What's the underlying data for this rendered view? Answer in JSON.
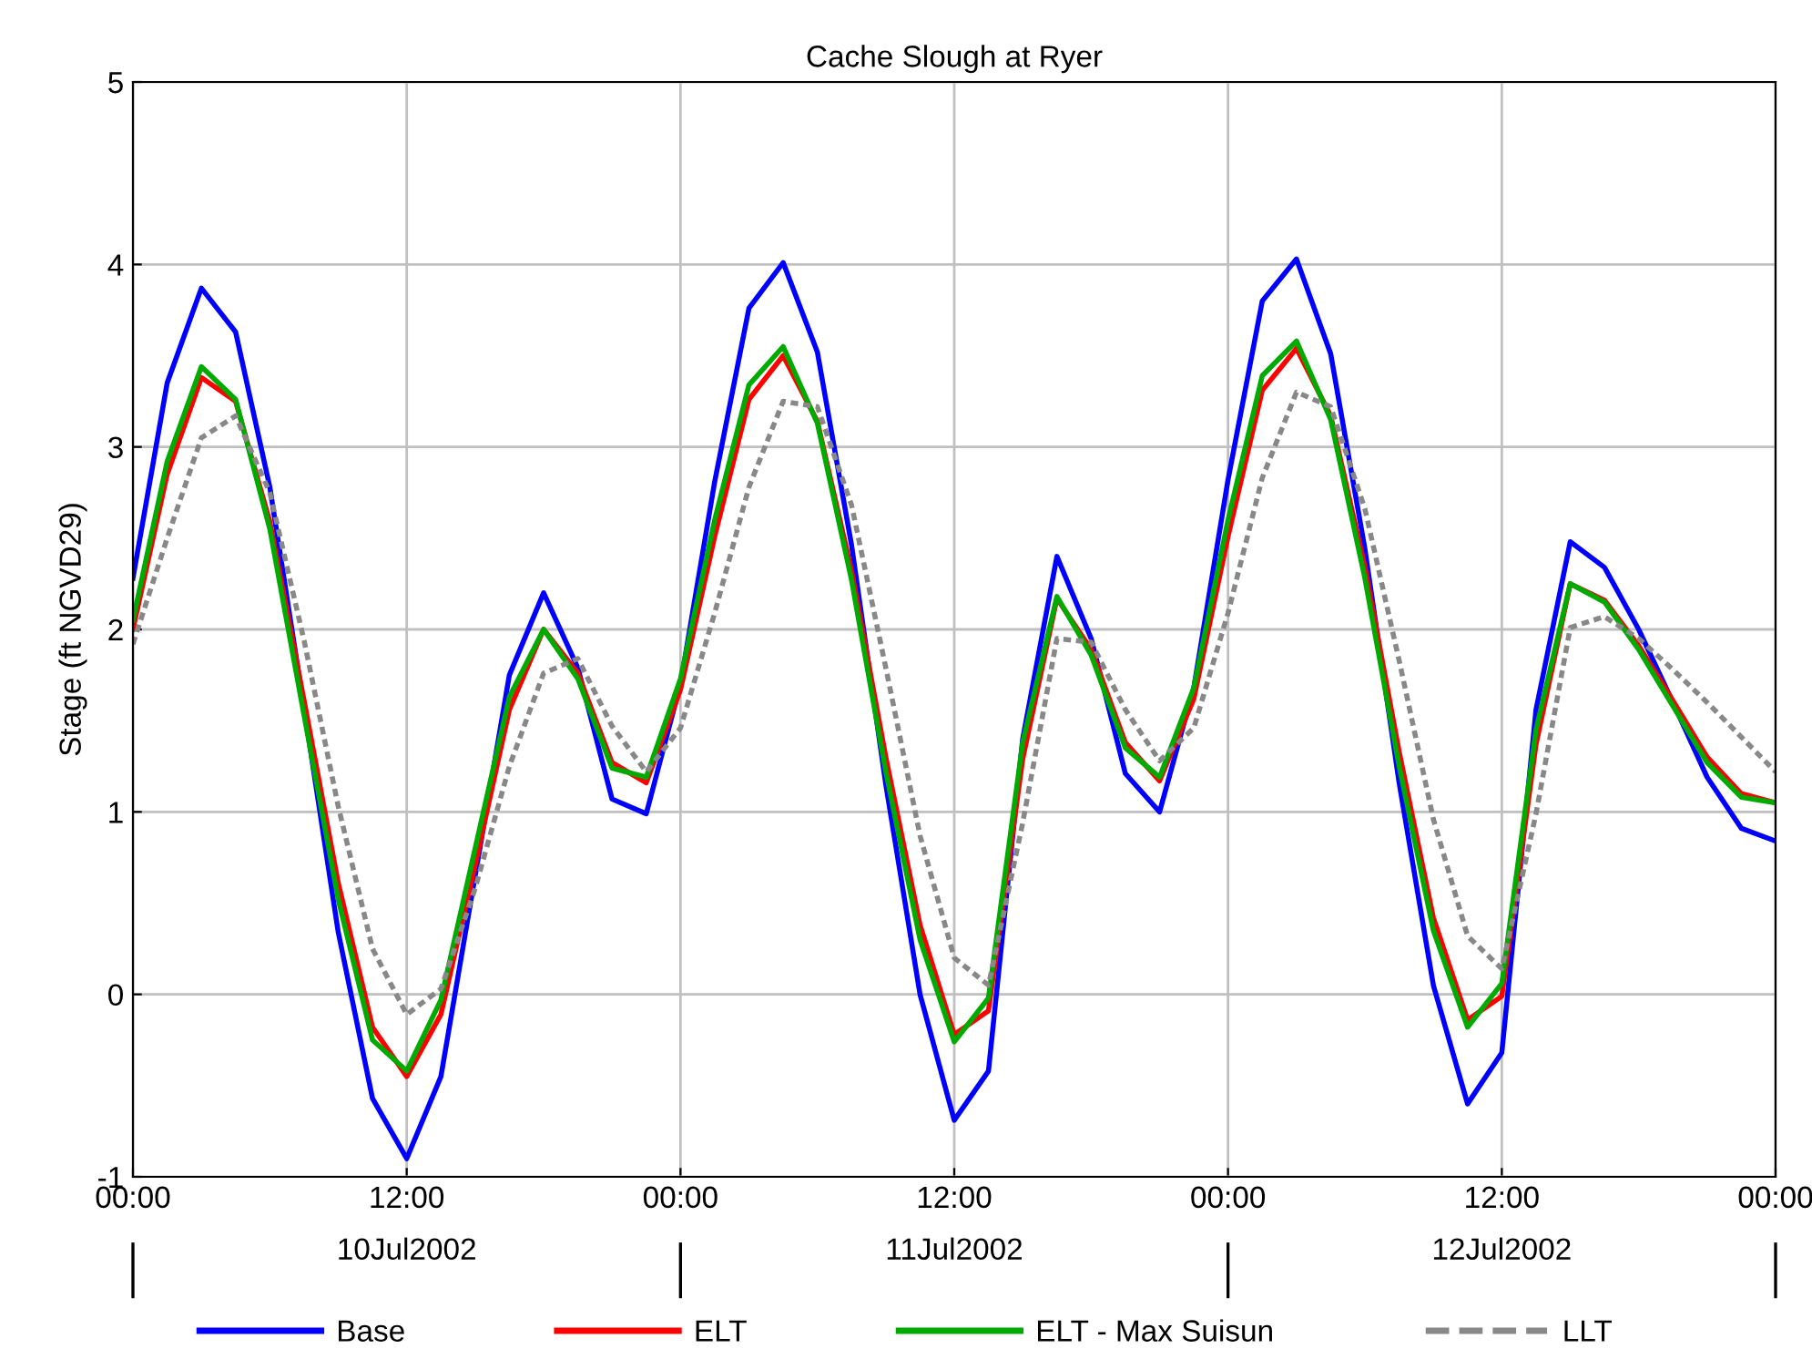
{
  "chart_data": {
    "type": "line",
    "title": "Cache Slough at Ryer",
    "ylabel": "Stage (ft NGVD29)",
    "xlim": [
      "2002-07-10T00:00",
      "2002-07-13T00:00"
    ],
    "xticks": [
      {
        "value": "2002-07-10T00:00",
        "label": "00:00"
      },
      {
        "value": "2002-07-10T12:00",
        "label": "12:00"
      },
      {
        "value": "2002-07-11T00:00",
        "label": "00:00"
      },
      {
        "value": "2002-07-11T12:00",
        "label": "12:00"
      },
      {
        "value": "2002-07-12T00:00",
        "label": "00:00"
      },
      {
        "value": "2002-07-12T12:00",
        "label": "12:00"
      },
      {
        "value": "2002-07-13T00:00",
        "label": "00:00"
      }
    ],
    "x2lim": [
      "2002-07-10T00:00",
      "2002-07-13T00:00"
    ],
    "x2ticks": [
      {
        "value": "2002-07-10T00:00",
        "label": null
      },
      {
        "value": "2002-07-10T12:00",
        "label": "10Jul2002"
      },
      {
        "value": "2002-07-11T00:00",
        "label": null
      },
      {
        "value": "2002-07-11T12:00",
        "label": "11Jul2002"
      },
      {
        "value": "2002-07-12T00:00",
        "label": null
      },
      {
        "value": "2002-07-12T12:00",
        "label": "12Jul2002"
      },
      {
        "value": "2002-07-13T00:00",
        "label": null
      }
    ],
    "ylim": [
      -1,
      5
    ],
    "yticks": [
      -1,
      0,
      1,
      2,
      3,
      4,
      5
    ],
    "grid": true,
    "legend": "bottom",
    "marker": "none",
    "x": [
      "2002-07-10T00:00",
      "2002-07-10T01:30",
      "2002-07-10T03:00",
      "2002-07-10T04:30",
      "2002-07-10T06:00",
      "2002-07-10T07:30",
      "2002-07-10T09:00",
      "2002-07-10T10:30",
      "2002-07-10T12:00",
      "2002-07-10T13:30",
      "2002-07-10T15:00",
      "2002-07-10T16:30",
      "2002-07-10T18:00",
      "2002-07-10T19:30",
      "2002-07-10T21:00",
      "2002-07-10T22:30",
      "2002-07-11T00:00",
      "2002-07-11T01:30",
      "2002-07-11T03:00",
      "2002-07-11T04:30",
      "2002-07-11T06:00",
      "2002-07-11T07:30",
      "2002-07-11T09:00",
      "2002-07-11T10:30",
      "2002-07-11T12:00",
      "2002-07-11T13:30",
      "2002-07-11T15:00",
      "2002-07-11T16:30",
      "2002-07-11T18:00",
      "2002-07-11T19:30",
      "2002-07-11T21:00",
      "2002-07-11T22:30",
      "2002-07-12T00:00",
      "2002-07-12T01:30",
      "2002-07-12T03:00",
      "2002-07-12T04:30",
      "2002-07-12T06:00",
      "2002-07-12T07:30",
      "2002-07-12T09:00",
      "2002-07-12T10:30",
      "2002-07-12T12:00",
      "2002-07-12T13:30",
      "2002-07-12T15:00",
      "2002-07-12T16:30",
      "2002-07-12T18:00",
      "2002-07-12T19:30",
      "2002-07-12T21:00",
      "2002-07-12T22:30",
      "2002-07-13T00:00"
    ],
    "series": [
      {
        "name": "Base",
        "color": "#0000ff",
        "line_style": "solid",
        "values": [
          2.28,
          3.35,
          3.87,
          3.63,
          2.78,
          1.57,
          0.34,
          -0.57,
          -0.9,
          -0.45,
          0.65,
          1.75,
          2.2,
          1.79,
          1.07,
          0.99,
          1.7,
          2.81,
          3.76,
          4.01,
          3.52,
          2.46,
          1.15,
          0.0,
          -0.69,
          -0.42,
          1.4,
          2.4,
          1.95,
          1.21,
          1.0,
          1.68,
          2.82,
          3.8,
          4.03,
          3.51,
          2.44,
          1.16,
          0.05,
          -0.6,
          -0.32,
          1.56,
          2.48,
          2.34,
          2.0,
          1.6,
          1.19,
          0.91,
          0.84
        ]
      },
      {
        "name": "ELT",
        "color": "#ff0000",
        "line_style": "solid",
        "values": [
          2.0,
          2.85,
          3.38,
          3.25,
          2.59,
          1.61,
          0.61,
          -0.18,
          -0.45,
          -0.11,
          0.71,
          1.56,
          2.0,
          1.76,
          1.27,
          1.16,
          1.67,
          2.51,
          3.26,
          3.5,
          3.14,
          2.32,
          1.3,
          0.38,
          -0.22,
          -0.09,
          1.29,
          2.17,
          1.89,
          1.38,
          1.17,
          1.62,
          2.51,
          3.31,
          3.54,
          3.17,
          2.34,
          1.33,
          0.42,
          -0.14,
          -0.01,
          1.37,
          2.25,
          2.16,
          1.91,
          1.61,
          1.3,
          1.1,
          1.05
        ]
      },
      {
        "name": "ELT - Max Suisun",
        "color": "#00aa00",
        "line_style": "solid",
        "values": [
          2.05,
          2.92,
          3.44,
          3.26,
          2.55,
          1.53,
          0.52,
          -0.25,
          -0.42,
          -0.03,
          0.8,
          1.63,
          2.0,
          1.73,
          1.24,
          1.19,
          1.73,
          2.6,
          3.34,
          3.55,
          3.13,
          2.27,
          1.22,
          0.3,
          -0.26,
          -0.02,
          1.38,
          2.18,
          1.86,
          1.35,
          1.19,
          1.68,
          2.6,
          3.39,
          3.58,
          3.15,
          2.28,
          1.25,
          0.35,
          -0.18,
          0.06,
          1.45,
          2.25,
          2.15,
          1.89,
          1.58,
          1.27,
          1.08,
          1.05
        ]
      },
      {
        "name": "LLT",
        "color": "#888888",
        "line_style": "dotted",
        "values": [
          1.92,
          2.5,
          3.05,
          3.17,
          2.75,
          1.94,
          1.03,
          0.25,
          -0.11,
          0.03,
          0.58,
          1.25,
          1.76,
          1.84,
          1.47,
          1.22,
          1.46,
          2.09,
          2.78,
          3.25,
          3.22,
          2.68,
          1.79,
          0.87,
          0.2,
          0.05,
          0.94,
          1.95,
          1.93,
          1.56,
          1.28,
          1.46,
          2.09,
          2.83,
          3.3,
          3.22,
          2.66,
          1.83,
          0.96,
          0.32,
          0.14,
          0.99,
          2.01,
          2.07,
          1.95,
          1.78,
          1.6,
          1.41,
          1.22
        ]
      }
    ]
  }
}
